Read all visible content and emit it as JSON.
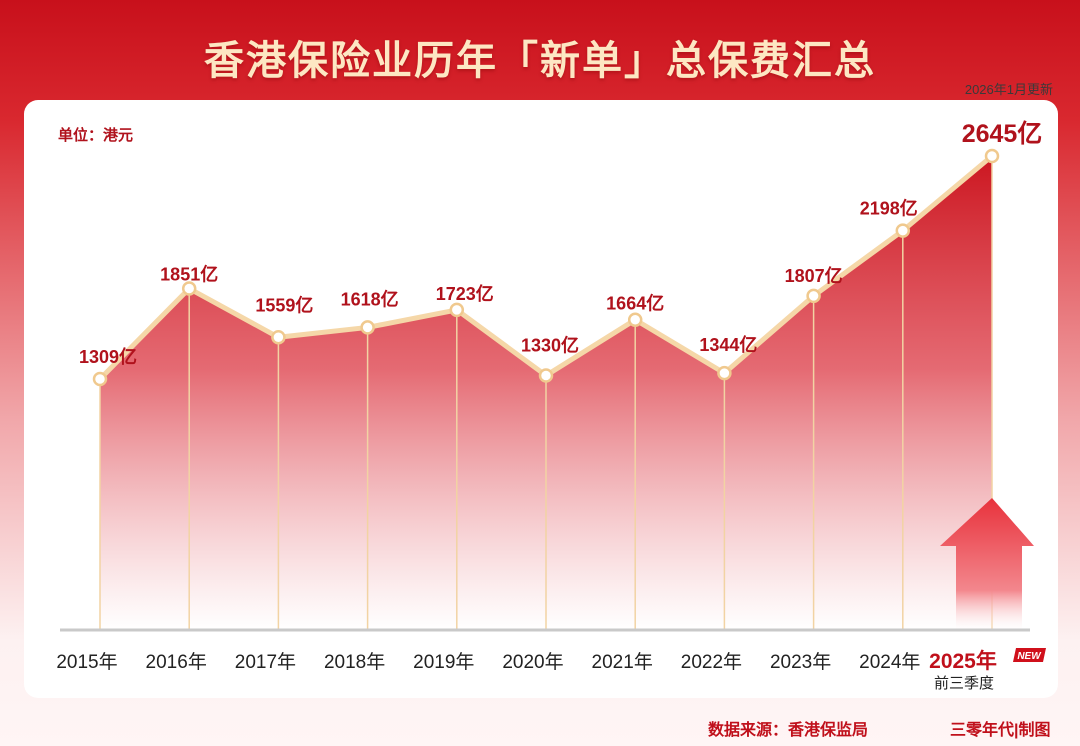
{
  "header": {
    "title": "香港保险业历年「新单」总保费汇总",
    "update_note": "2026年1月更新"
  },
  "unit_label": "单位：港元",
  "footer": {
    "source": "数据来源：香港保监局",
    "credit": "三零年代|制图"
  },
  "colors": {
    "primary": "#c8101b",
    "line": "#f5d7a8",
    "label": "#b0121c"
  },
  "chart_data": {
    "type": "area",
    "categories": [
      "2015年",
      "2016年",
      "2017年",
      "2018年",
      "2019年",
      "2020年",
      "2021年",
      "2022年",
      "2023年",
      "2024年",
      "2025年"
    ],
    "values": [
      1309,
      1851,
      1559,
      1618,
      1723,
      1330,
      1664,
      1344,
      1807,
      2198,
      2645
    ],
    "data_labels": [
      "1309亿",
      "1851亿",
      "1559亿",
      "1618亿",
      "1723亿",
      "1330亿",
      "1664亿",
      "1344亿",
      "1807亿",
      "2198亿",
      "2645亿"
    ],
    "last_category_note": "前三季度",
    "new_badge": "NEW",
    "ylim": [
      0,
      2800
    ],
    "grid": false,
    "legend": "none"
  }
}
